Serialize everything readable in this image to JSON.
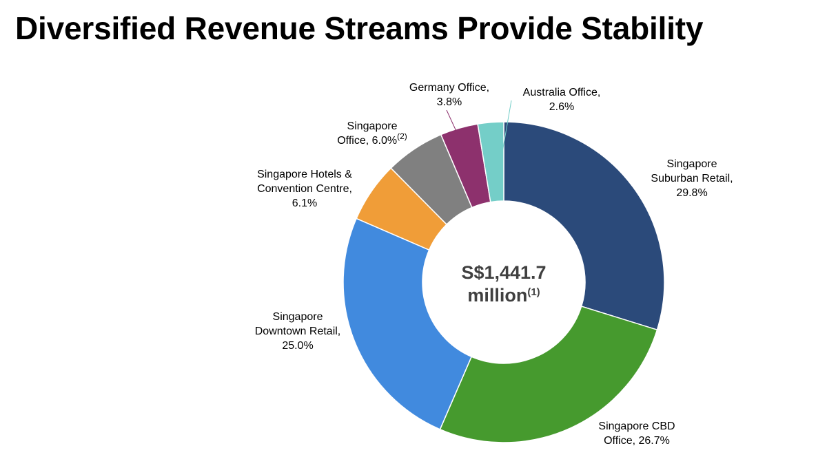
{
  "page": {
    "title": "Diversified Revenue Streams Provide Stability"
  },
  "chart_data": {
    "type": "pie",
    "variant": "donut",
    "center_label": {
      "line1": "S$1,441.7",
      "line2": "million",
      "note": "(1)"
    },
    "unit": "%",
    "slices": [
      {
        "name": "Singapore Suburban Retail",
        "label_lines": [
          "Singapore",
          "Suburban Retail,",
          "29.8%"
        ],
        "value": 29.8,
        "color": "#2b4a7a"
      },
      {
        "name": "Singapore CBD Office",
        "label_lines": [
          "Singapore CBD",
          "Office, 26.7%"
        ],
        "value": 26.7,
        "color": "#469a2e"
      },
      {
        "name": "Singapore Downtown Retail",
        "label_lines": [
          "Singapore",
          "Downtown Retail,",
          "25.0%"
        ],
        "value": 25.0,
        "color": "#418ade"
      },
      {
        "name": "Singapore Hotels & Convention Centre",
        "label_lines": [
          "Singapore Hotels &",
          "Convention Centre,",
          "6.1%"
        ],
        "value": 6.1,
        "color": "#f09d38"
      },
      {
        "name": "Singapore Office",
        "label_lines": [
          "Singapore",
          "Office, 6.0%"
        ],
        "note": "(2)",
        "value": 6.0,
        "color": "#808080"
      },
      {
        "name": "Germany Office",
        "label_lines": [
          "Germany Office,",
          "3.8%"
        ],
        "value": 3.8,
        "color": "#8d316d"
      },
      {
        "name": "Australia Office",
        "label_lines": [
          "Australia Office,",
          "2.6%"
        ],
        "value": 2.6,
        "color": "#74cec8"
      }
    ],
    "legend": "none"
  }
}
